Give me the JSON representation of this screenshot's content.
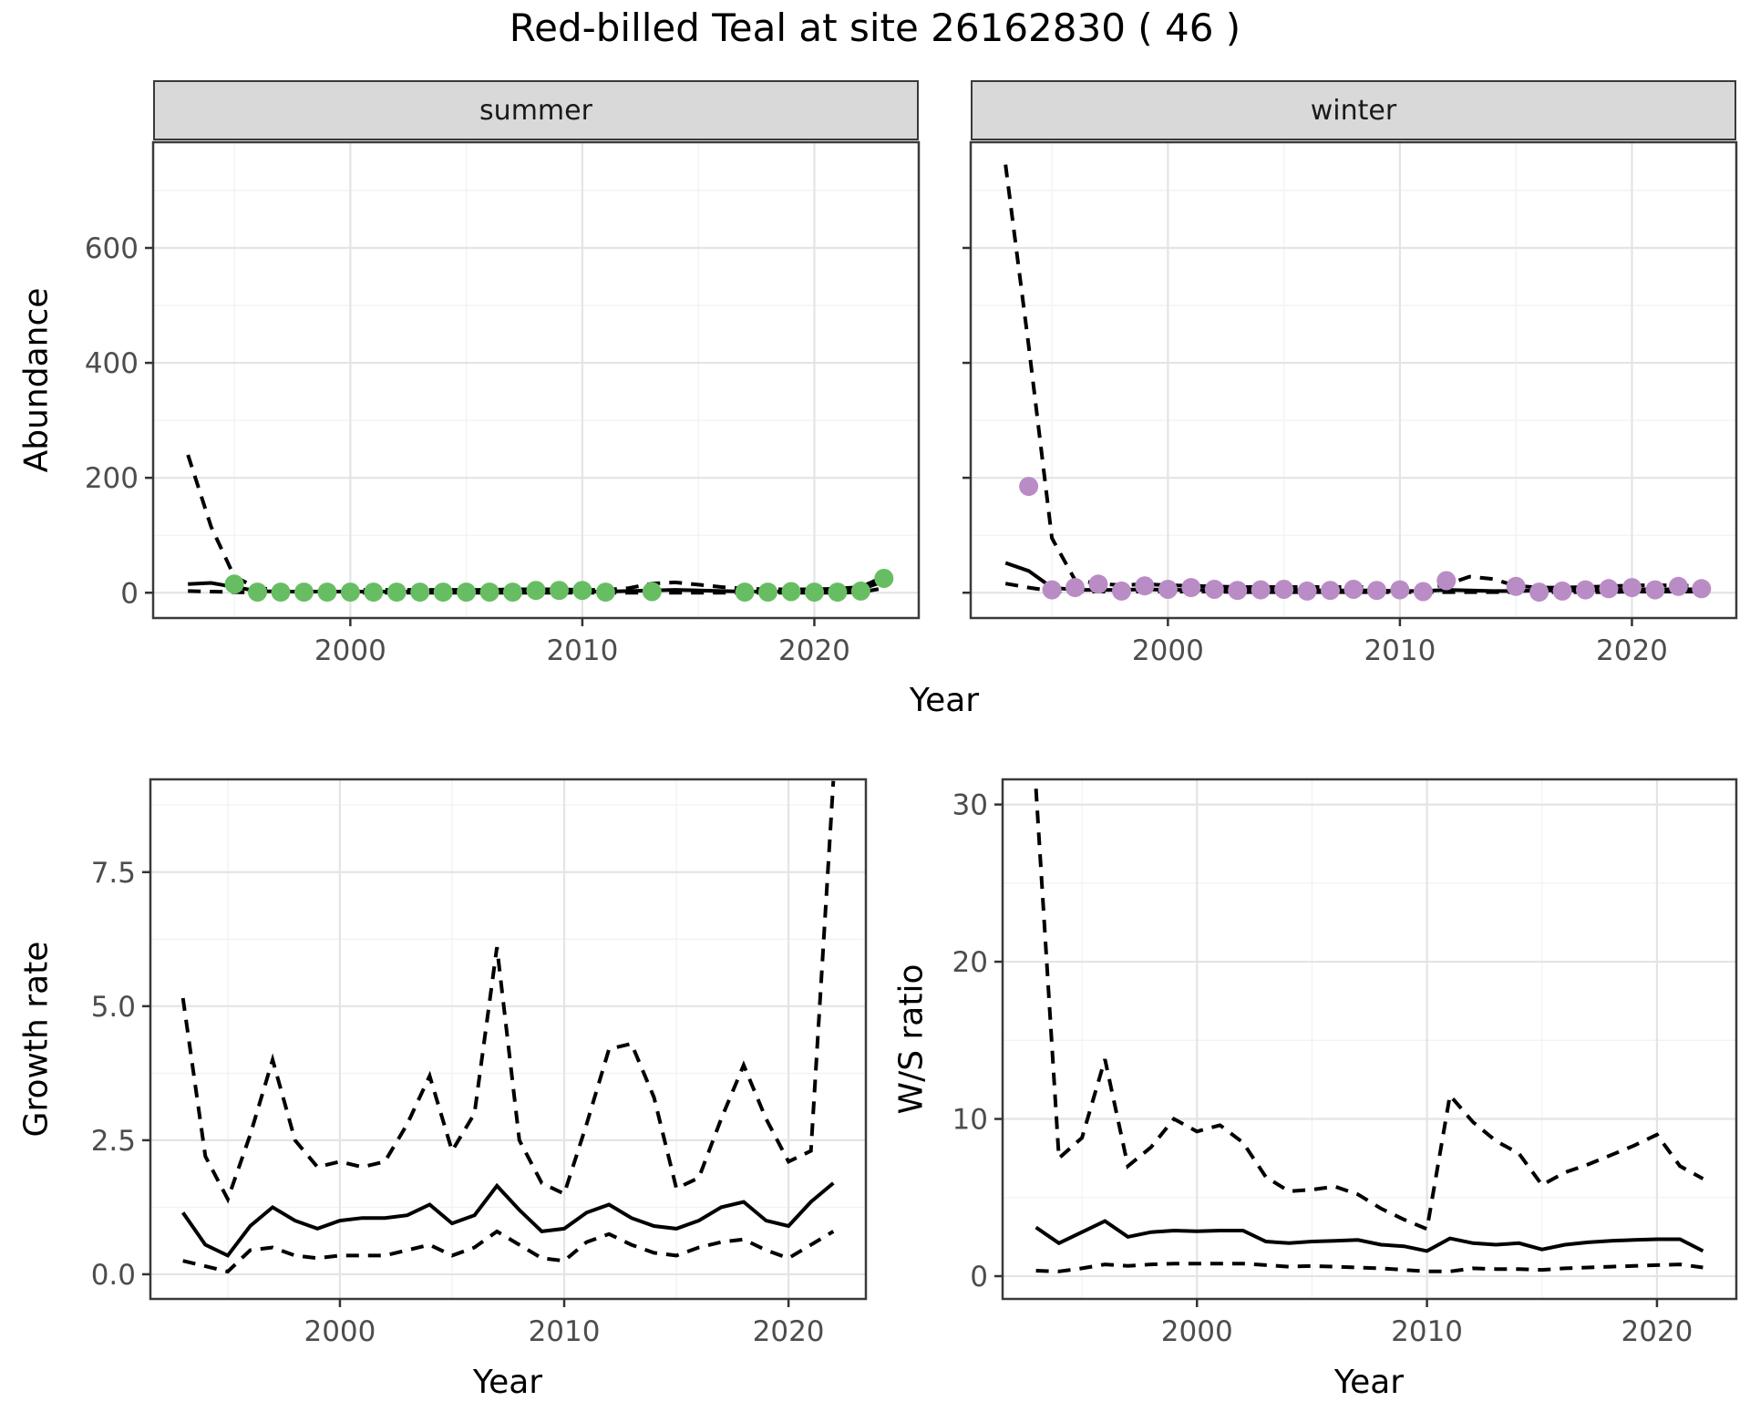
{
  "title": "Red-billed Teal at site 26162830 ( 46 )",
  "axis_labels": {
    "x": "Year",
    "y_abundance": "Abundance",
    "y_growth": "Growth rate",
    "y_ws": "W/S ratio"
  },
  "facets": {
    "summer": "summer",
    "winter": "winter"
  },
  "colors": {
    "summer_point": "#67BE62",
    "winter_point": "#B98CC6",
    "line": "#000000",
    "strip_bg": "#D9D9D9",
    "panel_border": "#3a3a3a",
    "grid_major": "#E4E4E4",
    "grid_minor": "#F2F2F2",
    "tick_text": "#4D4D4D"
  },
  "chart_data": [
    {
      "id": "abundance-summer",
      "type": "line",
      "facet": "summer",
      "ylabel": "Abundance",
      "xlabel": "Year",
      "xlim": [
        1991.5,
        2024.5
      ],
      "ylim": [
        -44,
        784
      ],
      "xticks": [
        2000,
        2010,
        2020
      ],
      "xtick_labels": [
        "2000",
        "2010",
        "2020"
      ],
      "xminor": [
        1995,
        2005,
        2015
      ],
      "yticks": [
        0,
        200,
        400,
        600
      ],
      "ytick_labels": [
        "0",
        "200",
        "400",
        "600"
      ],
      "yminor": [
        100,
        300,
        500,
        700
      ],
      "years": [
        1993,
        1994,
        1995,
        1996,
        1997,
        1998,
        1999,
        2000,
        2001,
        2002,
        2003,
        2004,
        2005,
        2006,
        2007,
        2008,
        2009,
        2010,
        2011,
        2012,
        2013,
        2014,
        2015,
        2016,
        2017,
        2018,
        2019,
        2020,
        2021,
        2022,
        2023
      ],
      "series": [
        {
          "name": "upper-95ci",
          "style": "dashed",
          "values": [
            240,
            115,
            28,
            8,
            5,
            5,
            5,
            5,
            5,
            5,
            5,
            5,
            5,
            5,
            6,
            6,
            6,
            5,
            5,
            8,
            16,
            18,
            14,
            10,
            7,
            6,
            6,
            6,
            7,
            10,
            28
          ]
        },
        {
          "name": "median",
          "style": "solid",
          "values": [
            15,
            17,
            10,
            3,
            2,
            2,
            2,
            2,
            2,
            2,
            2,
            2,
            2,
            2,
            3,
            3,
            3,
            2,
            2,
            3,
            4,
            5,
            4,
            3,
            2,
            2,
            2,
            2,
            3,
            6,
            20
          ]
        },
        {
          "name": "lower-95ci",
          "style": "dashed",
          "values": [
            3,
            2,
            1,
            0,
            0,
            0,
            0,
            0,
            0,
            0,
            0,
            0,
            0,
            0,
            0,
            0,
            0,
            0,
            0,
            0,
            0,
            0,
            0,
            0,
            0,
            0,
            0,
            0,
            0,
            1,
            8
          ]
        }
      ],
      "points": {
        "color": "#67BE62",
        "data": [
          [
            1995,
            15
          ],
          [
            1996,
            1
          ],
          [
            1997,
            1
          ],
          [
            1998,
            1
          ],
          [
            1999,
            1
          ],
          [
            2000,
            1
          ],
          [
            2001,
            1
          ],
          [
            2002,
            1
          ],
          [
            2003,
            1
          ],
          [
            2004,
            1
          ],
          [
            2005,
            1
          ],
          [
            2006,
            1
          ],
          [
            2007,
            1
          ],
          [
            2008,
            4
          ],
          [
            2009,
            4
          ],
          [
            2010,
            4
          ],
          [
            2011,
            1
          ],
          [
            2013,
            2
          ],
          [
            2017,
            1
          ],
          [
            2018,
            1
          ],
          [
            2019,
            2
          ],
          [
            2020,
            1
          ],
          [
            2021,
            1
          ],
          [
            2022,
            3
          ],
          [
            2023,
            25
          ]
        ]
      }
    },
    {
      "id": "abundance-winter",
      "type": "line",
      "facet": "winter",
      "ylabel": "Abundance",
      "xlabel": "Year",
      "xlim": [
        1991.5,
        2024.5
      ],
      "ylim": [
        -44,
        784
      ],
      "xticks": [
        2000,
        2010,
        2020
      ],
      "xtick_labels": [
        "2000",
        "2010",
        "2020"
      ],
      "xminor": [
        1995,
        2005,
        2015
      ],
      "yticks": [
        0,
        200,
        400,
        600
      ],
      "ytick_labels": [
        "0",
        "200",
        "400",
        "600"
      ],
      "yminor": [
        100,
        300,
        500,
        700
      ],
      "years": [
        1993,
        1994,
        1995,
        1996,
        1997,
        1998,
        1999,
        2000,
        2001,
        2002,
        2003,
        2004,
        2005,
        2006,
        2007,
        2008,
        2009,
        2010,
        2011,
        2012,
        2013,
        2014,
        2015,
        2016,
        2017,
        2018,
        2019,
        2020,
        2021,
        2022,
        2023
      ],
      "series": [
        {
          "name": "upper-95ci",
          "style": "dashed",
          "values": [
            745,
            430,
            95,
            22,
            16,
            13,
            15,
            13,
            12,
            11,
            10,
            10,
            10,
            10,
            10,
            10,
            10,
            9,
            8,
            14,
            28,
            24,
            12,
            9,
            9,
            10,
            11,
            13,
            13,
            13,
            11
          ]
        },
        {
          "name": "median",
          "style": "solid",
          "values": [
            52,
            38,
            9,
            5,
            5,
            5,
            6,
            5,
            5,
            5,
            4,
            4,
            4,
            4,
            4,
            4,
            4,
            3,
            3,
            5,
            4,
            3,
            3,
            4,
            4,
            4,
            5,
            6,
            6,
            6,
            6
          ]
        },
        {
          "name": "lower-95ci",
          "style": "dashed",
          "values": [
            16,
            9,
            3,
            2,
            2,
            2,
            2,
            2,
            2,
            2,
            1,
            1,
            1,
            1,
            1,
            1,
            1,
            1,
            1,
            1,
            1,
            1,
            1,
            1,
            1,
            1,
            1,
            2,
            2,
            2,
            2
          ]
        }
      ],
      "points": {
        "color": "#B98CC6",
        "data": [
          [
            1994,
            185
          ],
          [
            1995,
            5
          ],
          [
            1996,
            9
          ],
          [
            1997,
            15
          ],
          [
            1998,
            3
          ],
          [
            1999,
            12
          ],
          [
            2000,
            6
          ],
          [
            2001,
            9
          ],
          [
            2002,
            6
          ],
          [
            2003,
            4
          ],
          [
            2004,
            5
          ],
          [
            2005,
            6
          ],
          [
            2006,
            3
          ],
          [
            2007,
            4
          ],
          [
            2008,
            6
          ],
          [
            2009,
            4
          ],
          [
            2010,
            5
          ],
          [
            2011,
            2
          ],
          [
            2012,
            21
          ],
          [
            2015,
            11
          ],
          [
            2016,
            1
          ],
          [
            2017,
            3
          ],
          [
            2018,
            5
          ],
          [
            2019,
            7
          ],
          [
            2020,
            9
          ],
          [
            2021,
            5
          ],
          [
            2022,
            11
          ],
          [
            2023,
            7
          ]
        ]
      }
    },
    {
      "id": "growth-rate",
      "type": "line",
      "facet": "",
      "ylabel": "Growth rate",
      "xlabel": "Year",
      "xlim": [
        1991.55,
        2023.45
      ],
      "ylim": [
        -0.46,
        9.23
      ],
      "xticks": [
        2000,
        2010,
        2020
      ],
      "xtick_labels": [
        "2000",
        "2010",
        "2020"
      ],
      "xminor": [
        1995,
        2005,
        2015
      ],
      "yticks": [
        0,
        2.5,
        5,
        7.5
      ],
      "ytick_labels": [
        "0.0",
        "2.5",
        "5.0",
        "7.5"
      ],
      "yminor": [
        1.25,
        3.75,
        6.25,
        8.75
      ],
      "years": [
        1993,
        1994,
        1995,
        1996,
        1997,
        1998,
        1999,
        2000,
        2001,
        2002,
        2003,
        2004,
        2005,
        2006,
        2007,
        2008,
        2009,
        2010,
        2011,
        2012,
        2013,
        2014,
        2015,
        2016,
        2017,
        2018,
        2019,
        2020,
        2021,
        2022
      ],
      "series": [
        {
          "name": "upper-95ci",
          "style": "dashed",
          "values": [
            5.15,
            2.2,
            1.4,
            2.6,
            4.0,
            2.5,
            2.0,
            2.1,
            2.0,
            2.1,
            2.8,
            3.7,
            2.3,
            3.0,
            6.1,
            2.5,
            1.7,
            1.5,
            2.8,
            4.2,
            4.3,
            3.3,
            1.6,
            1.8,
            2.9,
            3.9,
            2.9,
            2.1,
            2.3,
            9.2
          ]
        },
        {
          "name": "median",
          "style": "solid",
          "values": [
            1.15,
            0.55,
            0.35,
            0.9,
            1.25,
            1.0,
            0.85,
            1.0,
            1.05,
            1.05,
            1.1,
            1.3,
            0.95,
            1.1,
            1.65,
            1.2,
            0.8,
            0.85,
            1.15,
            1.3,
            1.05,
            0.9,
            0.85,
            1.0,
            1.25,
            1.35,
            1.0,
            0.9,
            1.35,
            1.7
          ]
        },
        {
          "name": "lower-95ci",
          "style": "dashed",
          "values": [
            0.25,
            0.15,
            0.05,
            0.45,
            0.5,
            0.35,
            0.3,
            0.35,
            0.35,
            0.35,
            0.45,
            0.55,
            0.35,
            0.5,
            0.8,
            0.55,
            0.3,
            0.25,
            0.6,
            0.75,
            0.55,
            0.4,
            0.35,
            0.5,
            0.6,
            0.65,
            0.45,
            0.3,
            0.55,
            0.8
          ]
        }
      ],
      "points": null
    },
    {
      "id": "ws-ratio",
      "type": "line",
      "facet": "",
      "ylabel": "W/S ratio",
      "xlabel": "Year",
      "xlim": [
        1991.55,
        2023.45
      ],
      "ylim": [
        -1.45,
        31.6
      ],
      "xticks": [
        2000,
        2010,
        2020
      ],
      "xtick_labels": [
        "2000",
        "2010",
        "2020"
      ],
      "xminor": [
        1995,
        2005,
        2015
      ],
      "yticks": [
        0,
        10,
        20,
        30
      ],
      "ytick_labels": [
        "0",
        "10",
        "20",
        "30"
      ],
      "yminor": [
        5,
        15,
        25
      ],
      "years": [
        1993,
        1994,
        1995,
        1996,
        1997,
        1998,
        1999,
        2000,
        2001,
        2002,
        2003,
        2004,
        2005,
        2006,
        2007,
        2008,
        2009,
        2010,
        2011,
        2012,
        2013,
        2014,
        2015,
        2016,
        2017,
        2018,
        2019,
        2020,
        2021,
        2022
      ],
      "series": [
        {
          "name": "upper-95ci",
          "style": "dashed",
          "values": [
            31,
            7.5,
            8.8,
            13.8,
            7.0,
            8.2,
            10.0,
            9.2,
            9.6,
            8.5,
            6.3,
            5.4,
            5.5,
            5.7,
            5.2,
            4.3,
            3.6,
            3.0,
            11.5,
            9.8,
            8.6,
            7.8,
            5.8,
            6.6,
            7.1,
            7.7,
            8.3,
            9.0,
            7.0,
            6.2
          ]
        },
        {
          "name": "median",
          "style": "solid",
          "values": [
            3.1,
            2.1,
            2.8,
            3.5,
            2.5,
            2.8,
            2.9,
            2.85,
            2.9,
            2.9,
            2.2,
            2.1,
            2.2,
            2.25,
            2.3,
            2.0,
            1.9,
            1.6,
            2.4,
            2.1,
            2.0,
            2.1,
            1.7,
            2.0,
            2.15,
            2.25,
            2.3,
            2.35,
            2.35,
            1.6
          ]
        },
        {
          "name": "lower-95ci",
          "style": "dashed",
          "values": [
            0.35,
            0.3,
            0.5,
            0.75,
            0.65,
            0.75,
            0.8,
            0.8,
            0.8,
            0.8,
            0.7,
            0.6,
            0.65,
            0.6,
            0.55,
            0.5,
            0.4,
            0.3,
            0.3,
            0.5,
            0.45,
            0.45,
            0.4,
            0.5,
            0.55,
            0.6,
            0.65,
            0.7,
            0.75,
            0.55
          ]
        }
      ],
      "points": null
    }
  ]
}
